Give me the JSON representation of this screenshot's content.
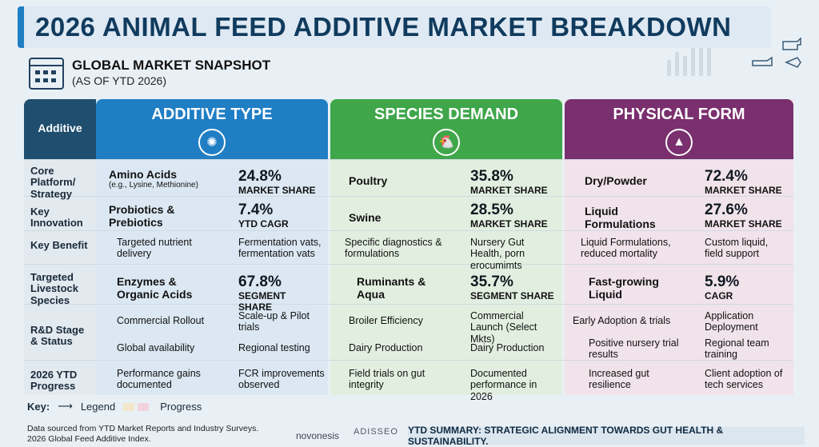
{
  "title": "2026 ANIMAL FEED ADDITIVE MARKET BREAKDOWN",
  "snapshot": {
    "title": "GLOBAL MARKET SNAPSHOT",
    "subtitle": "(AS OF YTD 2026)"
  },
  "columns": {
    "label": "Additive",
    "additive_type": "ADDITIVE TYPE",
    "species_demand": "SPECIES DEMAND",
    "physical_form": "PHYSICAL FORM"
  },
  "colors": {
    "blue": "#1f7ec4",
    "green": "#3fa64a",
    "purple": "#7a2f6e",
    "label": "#1f4e6e"
  },
  "rows": [
    "Core Platform/ Strategy",
    "Key Innovation",
    "Key Benefit",
    "Targeted Livestock Species",
    "R&D Stage & Status",
    "2026 YTD Progress"
  ],
  "cells": {
    "r0": [
      "Amino Acids",
      "(e.g., Lysine, Methionine)",
      "24.8%",
      "MARKET SHARE",
      "Poultry",
      "35.8%",
      "MARKET SHARE",
      "Dry/Powder",
      "72.4%",
      "MARKET SHARE"
    ],
    "r1": [
      "Probiotics & Prebiotics",
      "7.4%",
      "YTD CAGR",
      "Swine",
      "28.5%",
      "MARKET SHARE",
      "Liquid Formulations",
      "27.6%",
      "MARKET SHARE"
    ],
    "r2": [
      "Targeted nutrient delivery",
      "Fermentation vats, fermentation vats",
      "Specific diagnostics & formulations",
      "Nursery Gut Health, porn erocumimts",
      "Liquid Formulations, reduced mortality",
      "Custom liquid, field support"
    ],
    "r3": [
      "Enzymes & Organic Acids",
      "67.8%",
      "SEGMENT SHARE",
      "Ruminants & Aqua",
      "35.7%",
      "SEGMENT SHARE",
      "Fast-growing Liquid",
      "5.9%",
      "CAGR"
    ],
    "r4": [
      "Commercial Rollout",
      "Global availability",
      "Scale-up & Pilot trials",
      "Regional testing",
      "Broiler Efficiency",
      "Dairy Production",
      "Commercial Launch (Select Mkts)",
      "Dairy Production",
      "Early Adoption & trials",
      "Positive nursery trial results",
      "Application Deployment",
      "Regional team training"
    ],
    "r5": [
      "Performance gains documented",
      "FCR improvements observed",
      "Field trials on gut integrity",
      "Documented performance in 2026",
      "Increased gut resilience",
      "Client adoption of tech services"
    ]
  },
  "key": {
    "label": "Key:",
    "legend": "Legend",
    "progress": "Progress"
  },
  "source": [
    "Data sourced from YTD Market Reports and Industry Surveys.",
    "2026 Global Feed Additive Index."
  ],
  "brands": [
    "novonesis",
    "ADISSEO"
  ],
  "summary": "YTD SUMMARY: STRATEGIC ALIGNMENT TOWARDS GUT HEALTH & SUSTAINABILITY."
}
